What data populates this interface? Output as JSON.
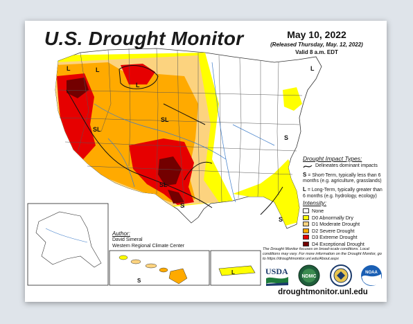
{
  "header": {
    "title": "U.S. Drought Monitor",
    "date": "May 10, 2022",
    "released": "(Released Thursday, May. 12, 2022)",
    "valid": "Valid 8 a.m. EDT"
  },
  "map_labels": {
    "short_term": "S",
    "long_term": "L",
    "short_long": "SL"
  },
  "impact": {
    "heading": "Drought Impact Types:",
    "line_desc": "Delineates dominant impacts",
    "s_key": "S",
    "s_desc": "= Short-Term, typically less than 6 months (e.g. agriculture, grasslands)",
    "l_key": "L",
    "l_desc": "= Long-Term, typically greater than 6 months (e.g. hydrology, ecology)"
  },
  "intensity": {
    "heading": "Intensity:",
    "items": [
      {
        "label": "None",
        "color": "#ffffff"
      },
      {
        "label": "D0 Abnormally Dry",
        "color": "#ffff00"
      },
      {
        "label": "D1 Moderate Drought",
        "color": "#fcd37f"
      },
      {
        "label": "D2 Severe Drought",
        "color": "#ffaa00"
      },
      {
        "label": "D3 Extreme Drought",
        "color": "#e60000"
      },
      {
        "label": "D4 Exceptional Drought",
        "color": "#730000"
      }
    ]
  },
  "author": {
    "heading": "Author:",
    "name": "David Simeral",
    "org": "Western Regional Climate Center"
  },
  "disclaimer": "The Drought Monitor focuses on broad-scale conditions. Local conditions may vary. For more information on the Drought Monitor, go to https://droughtmonitor.unl.edu/About.aspx",
  "logos": {
    "usda": "USDA",
    "ndmc": "NDMC",
    "noaa": "NOAA"
  },
  "url": "droughtmonitor.unl.edu"
}
